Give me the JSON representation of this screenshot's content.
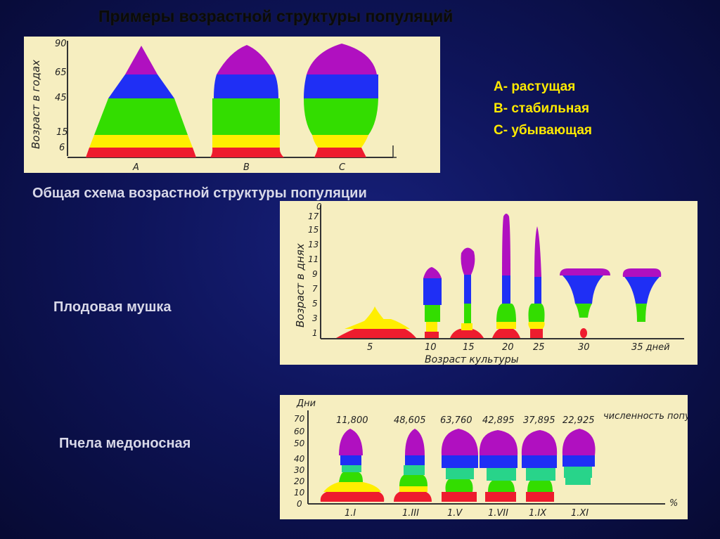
{
  "slide": {
    "title": "Примеры возрастной структуры популяций",
    "subtitle": "Общая схема возрастной структуры популяции",
    "legend": [
      "A- растущая",
      "B- стабильная",
      "C- убывающая"
    ],
    "label_fly": "Плодовая мушка",
    "label_bee": "Пчела медоносная"
  },
  "colors": {
    "background": "#0e145a",
    "panel": "#f6eec0",
    "legend": "#ffea00",
    "red": "#ee1c2e",
    "yellow": "#ffee00",
    "green": "#33dd00",
    "blue": "#1f2ff5",
    "purple": "#b010c0",
    "teal": "#28d48a"
  },
  "chart_data": [
    {
      "type": "other",
      "description_type": "age-structure pyramids",
      "ylabel": "Возраст в годах",
      "y_ticks": [
        "90",
        "65",
        "45",
        "15",
        "6"
      ],
      "categories": [
        "A",
        "B",
        "C"
      ],
      "age_bands_years": [
        [
          0,
          6
        ],
        [
          6,
          15
        ],
        [
          15,
          45
        ],
        [
          45,
          65
        ],
        [
          65,
          90
        ]
      ]
    },
    {
      "type": "other",
      "description_type": "age-structure diagrams by culture age",
      "ylabel": "Возраст в днях",
      "xlabel": "Возраст культуры",
      "y_ticks": [
        "1",
        "3",
        "5",
        "7",
        "9",
        "11",
        "13",
        "15",
        "17",
        "0"
      ],
      "x_ticks": [
        "5",
        "10",
        "15",
        "20",
        "25",
        "30",
        "35 дней"
      ]
    },
    {
      "type": "other",
      "description_type": "age-structure diagrams by month",
      "ylabel": "Дни",
      "y_ticks": [
        "0",
        "10",
        "20",
        "30",
        "40",
        "50",
        "60",
        "70"
      ],
      "x_ticks": [
        "1.I",
        "1.III",
        "1.V",
        "1.VII",
        "1.IX",
        "1.XI"
      ],
      "x_unit": "%",
      "population_label": "численность популяции",
      "population_counts": [
        "11,800",
        "48,605",
        "63,760",
        "42,895",
        "37,895",
        "22,925"
      ]
    }
  ]
}
